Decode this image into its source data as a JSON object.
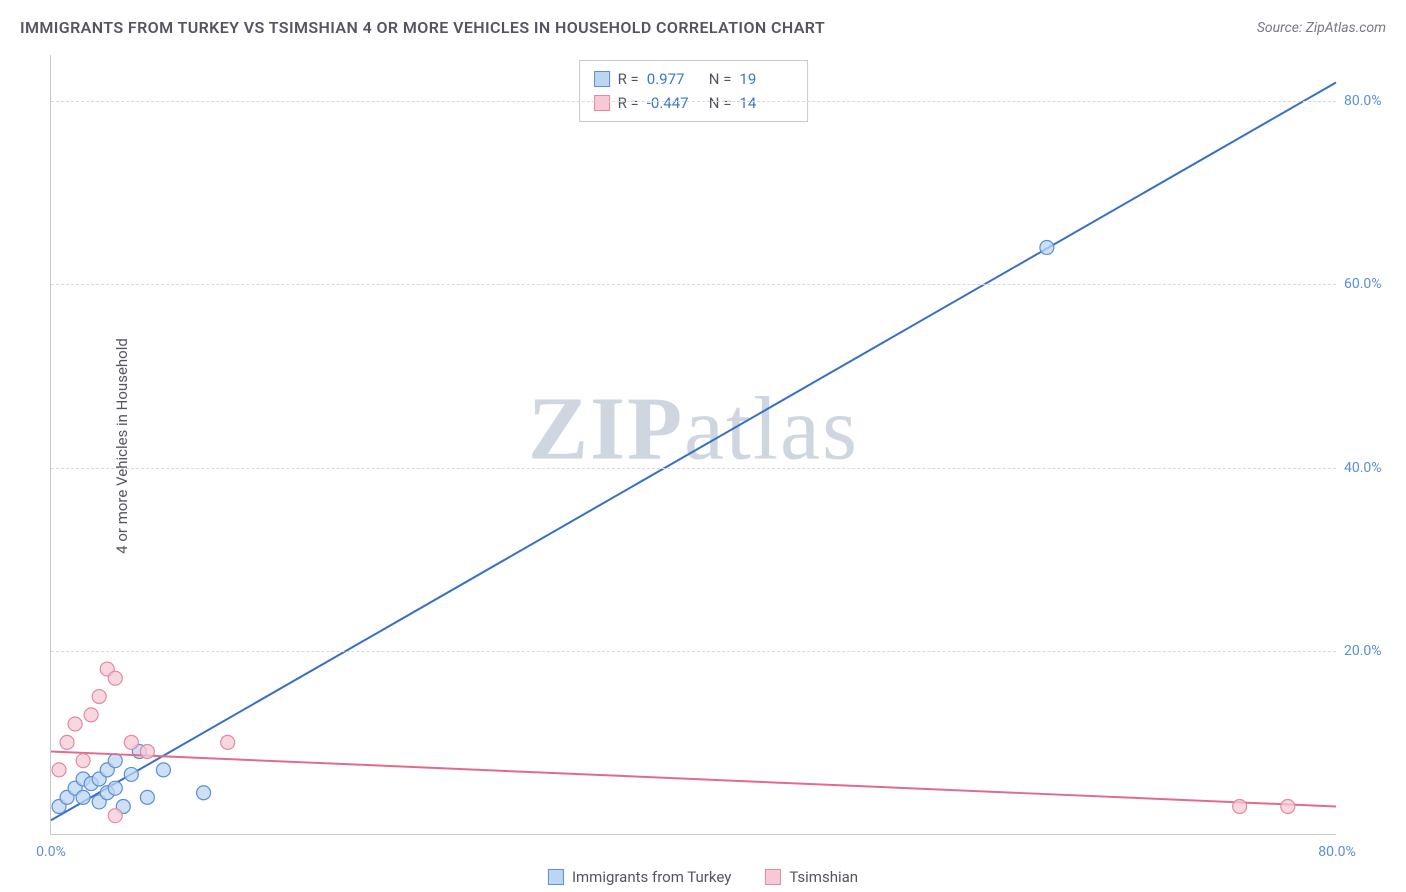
{
  "title": "IMMIGRANTS FROM TURKEY VS TSIMSHIAN 4 OR MORE VEHICLES IN HOUSEHOLD CORRELATION CHART",
  "source": "Source: ZipAtlas.com",
  "ylabel": "4 or more Vehicles in Household",
  "watermark": "ZIPatlas",
  "chart": {
    "type": "scatter-with-regression",
    "background_color": "#ffffff",
    "grid_color": "#d8d8de",
    "axis_color": "#c8c8d0",
    "tick_color": "#5a8fd6",
    "label_color": "#555560",
    "title_fontsize": 16,
    "label_fontsize": 15,
    "tick_fontsize": 14,
    "xlim": [
      0,
      80
    ],
    "ylim": [
      0,
      85
    ],
    "xticks": [
      {
        "v": 0,
        "label": "0.0%"
      },
      {
        "v": 80,
        "label": "80.0%"
      }
    ],
    "yticks": [
      {
        "v": 20,
        "label": "20.0%"
      },
      {
        "v": 40,
        "label": "40.0%"
      },
      {
        "v": 60,
        "label": "60.0%"
      },
      {
        "v": 80,
        "label": "80.0%"
      }
    ],
    "series": [
      {
        "name": "Immigrants from Turkey",
        "color_fill": "#bcd5f0",
        "color_stroke": "#5a8fd6",
        "marker_radius": 7,
        "line_color": "#3a6fc2",
        "line_width": 2,
        "stats": {
          "R": "0.977",
          "N": "19"
        },
        "regression": {
          "x1": 0,
          "y1": 1.5,
          "x2": 80,
          "y2": 82
        },
        "points": [
          {
            "x": 0.5,
            "y": 3
          },
          {
            "x": 1,
            "y": 4
          },
          {
            "x": 1.5,
            "y": 5
          },
          {
            "x": 2,
            "y": 6
          },
          {
            "x": 2,
            "y": 4
          },
          {
            "x": 2.5,
            "y": 5.5
          },
          {
            "x": 3,
            "y": 6
          },
          {
            "x": 3,
            "y": 3.5
          },
          {
            "x": 3.5,
            "y": 7
          },
          {
            "x": 3.5,
            "y": 4.5
          },
          {
            "x": 4,
            "y": 8
          },
          {
            "x": 4,
            "y": 5
          },
          {
            "x": 4.5,
            "y": 3
          },
          {
            "x": 5,
            "y": 6.5
          },
          {
            "x": 5.5,
            "y": 9
          },
          {
            "x": 6,
            "y": 4
          },
          {
            "x": 7,
            "y": 7
          },
          {
            "x": 9.5,
            "y": 4.5
          },
          {
            "x": 62,
            "y": 64
          }
        ]
      },
      {
        "name": "Tsimshian",
        "color_fill": "#f7c9d6",
        "color_stroke": "#e28aa2",
        "marker_radius": 7,
        "line_color": "#e46a8c",
        "line_width": 2,
        "stats": {
          "R": "-0.447",
          "N": "14"
        },
        "regression": {
          "x1": 0,
          "y1": 9,
          "x2": 80,
          "y2": 3
        },
        "points": [
          {
            "x": 0.5,
            "y": 7
          },
          {
            "x": 1,
            "y": 10
          },
          {
            "x": 1.5,
            "y": 12
          },
          {
            "x": 2,
            "y": 8
          },
          {
            "x": 2.5,
            "y": 13
          },
          {
            "x": 3,
            "y": 15
          },
          {
            "x": 3.5,
            "y": 18
          },
          {
            "x": 4,
            "y": 17
          },
          {
            "x": 4,
            "y": 2
          },
          {
            "x": 5,
            "y": 10
          },
          {
            "x": 6,
            "y": 9
          },
          {
            "x": 11,
            "y": 10
          },
          {
            "x": 74,
            "y": 3
          },
          {
            "x": 77,
            "y": 3
          }
        ]
      }
    ],
    "legend": [
      {
        "swatch": "blue",
        "label": "Immigrants from Turkey"
      },
      {
        "swatch": "pink",
        "label": "Tsimshian"
      }
    ]
  }
}
